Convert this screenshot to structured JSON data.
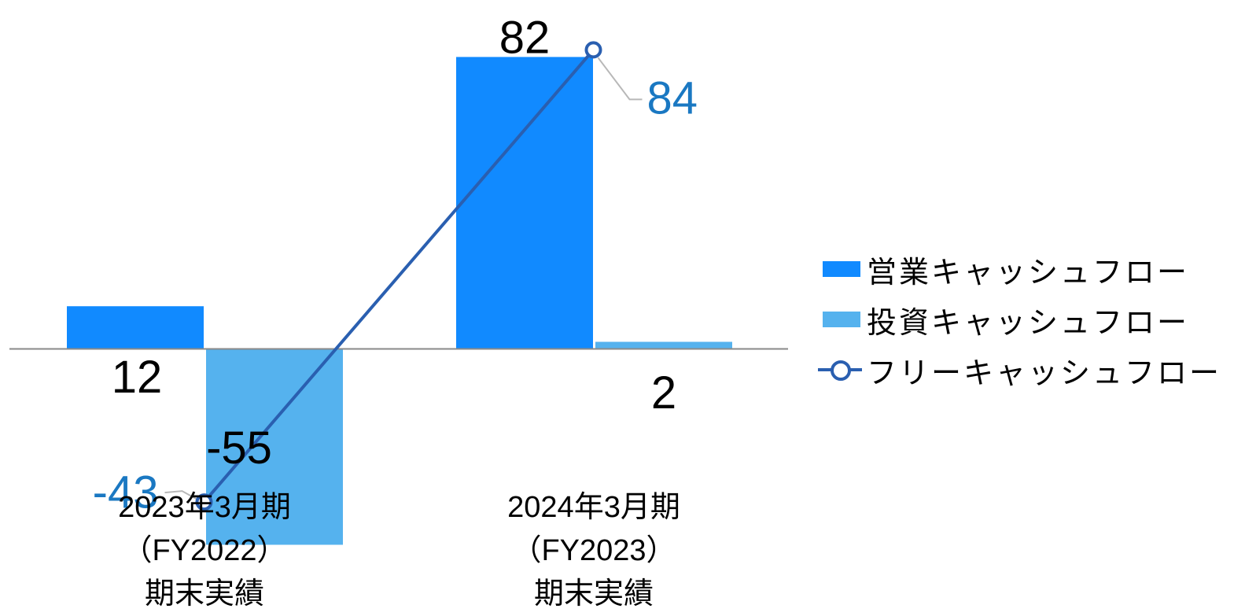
{
  "chart_data": {
    "type": "bar",
    "categories": [
      [
        "2023年3月期",
        "（FY2022）",
        "期末実績"
      ],
      [
        "2024年3月期",
        "（FY2023）",
        "期末実績"
      ]
    ],
    "series": [
      {
        "name": "営業キャッシュフロー",
        "kind": "bar",
        "color": "#118aff",
        "values": [
          12,
          82
        ]
      },
      {
        "name": "投資キャッシュフロー",
        "kind": "bar",
        "color": "#55b2ee",
        "values": [
          -55,
          2
        ]
      },
      {
        "name": "フリーキャッシュフロー",
        "kind": "line",
        "color": "#2a5fb0",
        "label_color": "#1a78c2",
        "values": [
          -43,
          84
        ]
      }
    ],
    "ylim": [
      -75,
      98
    ],
    "legend_position": "right",
    "grid": false
  }
}
